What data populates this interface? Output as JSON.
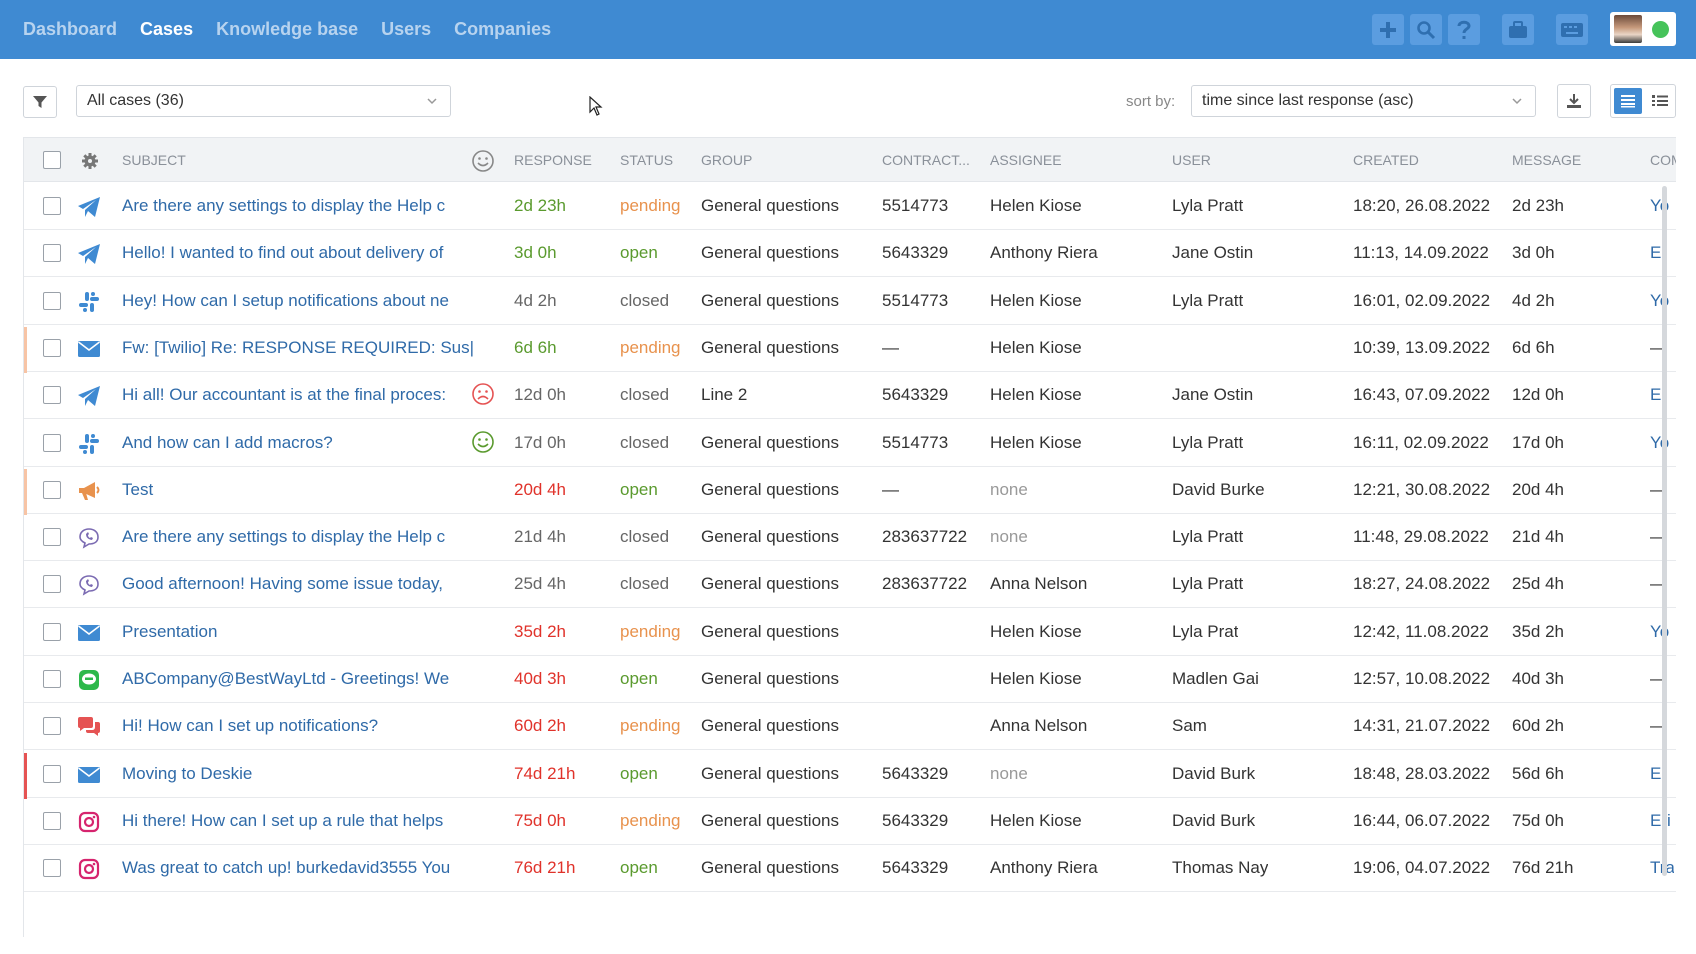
{
  "nav": {
    "items": [
      {
        "label": "Dashboard",
        "active": false
      },
      {
        "label": "Cases",
        "active": true
      },
      {
        "label": "Knowledge base",
        "active": false
      },
      {
        "label": "Users",
        "active": false
      },
      {
        "label": "Companies",
        "active": false
      }
    ]
  },
  "topbar_buttons": [
    "plus-icon",
    "search-icon",
    "help-icon",
    "briefcase-icon",
    "keyboard-icon"
  ],
  "toolbar": {
    "filter_value": "All cases (36)",
    "sort_label": "sort by:",
    "sort_value": "time since last response (asc)"
  },
  "table": {
    "columns": {
      "subject": "SUBJECT",
      "response": "RESPONSE",
      "status": "STATUS",
      "group": "GROUP",
      "contract": "CONTRACT...",
      "assignee": "ASSIGNEE",
      "user": "USER",
      "created": "CREATED",
      "message": "MESSAGE",
      "com": "COM"
    },
    "rows": [
      {
        "channel": "telegram",
        "flag": "",
        "subject": "Are there any settings to display the Help c",
        "mood": "",
        "response": "2d 23h",
        "response_color": "green",
        "status": "pending",
        "group": "General questions",
        "contract": "5514773",
        "assignee": "Helen Kiose",
        "user": "Lyla Pratt",
        "created": "18:20, 26.08.2022",
        "message": "2d 23h",
        "com": "Yo"
      },
      {
        "channel": "telegram",
        "flag": "",
        "subject": "Hello! I wanted to find out about delivery of",
        "mood": "",
        "response": "3d 0h",
        "response_color": "green",
        "status": "open",
        "group": "General questions",
        "contract": "5643329",
        "assignee": "Anthony Riera",
        "user": "Jane Ostin",
        "created": "11:13, 14.09.2022",
        "message": "3d 0h",
        "com": "Er"
      },
      {
        "channel": "slack",
        "flag": "",
        "subject": "Hey! How can I setup notifications about ne",
        "mood": "",
        "response": "4d 2h",
        "response_color": "gray",
        "status": "closed",
        "group": "General questions",
        "contract": "5514773",
        "assignee": "Helen Kiose",
        "user": "Lyla Pratt",
        "created": "16:01, 02.09.2022",
        "message": "4d 2h",
        "com": "Yo"
      },
      {
        "channel": "email",
        "flag": "#f7c4a5",
        "subject": "Fw: [Twilio] Re: RESPONSE REQUIRED: Sus|",
        "mood": "",
        "response": "6d 6h",
        "response_color": "green",
        "status": "pending",
        "group": "General questions",
        "contract": "—",
        "assignee": "Helen Kiose",
        "user": "",
        "created": "10:39, 13.09.2022",
        "message": "6d 6h",
        "com": "—"
      },
      {
        "channel": "telegram",
        "flag": "",
        "subject": "Hi all! Our accountant is at the final proces:",
        "mood": "sad",
        "response": "12d 0h",
        "response_color": "gray",
        "status": "closed",
        "group": "Line 2",
        "contract": "5643329",
        "assignee": "Helen Kiose",
        "user": "Jane Ostin",
        "created": "16:43, 07.09.2022",
        "message": "12d 0h",
        "com": "Er"
      },
      {
        "channel": "slack",
        "flag": "",
        "subject": "And how can I add macros?",
        "mood": "happy",
        "response": "17d 0h",
        "response_color": "gray",
        "status": "closed",
        "group": "General questions",
        "contract": "5514773",
        "assignee": "Helen Kiose",
        "user": "Lyla Pratt",
        "created": "16:11, 02.09.2022",
        "message": "17d 0h",
        "com": "Yo"
      },
      {
        "channel": "megaphone",
        "flag": "#f7c4a5",
        "subject": "Test",
        "mood": "",
        "response": "20d 4h",
        "response_color": "red",
        "status": "open",
        "group": "General questions",
        "contract": "—",
        "assignee": "none",
        "user": "David Burke",
        "created": "12:21, 30.08.2022",
        "message": "20d 4h",
        "com": "—"
      },
      {
        "channel": "viber",
        "flag": "",
        "subject": "Are there any settings to display the Help c",
        "mood": "",
        "response": "21d 4h",
        "response_color": "gray",
        "status": "closed",
        "group": "General questions",
        "contract": "283637722",
        "assignee": "none",
        "user": "Lyla Pratt",
        "created": "11:48, 29.08.2022",
        "message": "21d 4h",
        "com": "—"
      },
      {
        "channel": "viber",
        "flag": "",
        "subject": "Good afternoon! Having some issue today,",
        "mood": "",
        "response": "25d 4h",
        "response_color": "gray",
        "status": "closed",
        "group": "General questions",
        "contract": "283637722",
        "assignee": "Anna Nelson",
        "user": "Lyla Pratt",
        "created": "18:27, 24.08.2022",
        "message": "25d 4h",
        "com": "—"
      },
      {
        "channel": "email",
        "flag": "",
        "subject": "Presentation",
        "mood": "",
        "response": "35d 2h",
        "response_color": "red",
        "status": "pending",
        "group": "General questions",
        "contract": "",
        "assignee": "Helen Kiose",
        "user": "Lyla Prat",
        "created": "12:42, 11.08.2022",
        "message": "35d 2h",
        "com": "Yo"
      },
      {
        "channel": "line",
        "flag": "",
        "subject": "ABCompany@BestWayLtd - Greetings! We",
        "mood": "",
        "response": "40d 3h",
        "response_color": "red",
        "status": "open",
        "group": "General questions",
        "contract": "",
        "assignee": "Helen Kiose",
        "user": "Madlen Gai",
        "created": "12:57, 10.08.2022",
        "message": "40d 3h",
        "com": "—"
      },
      {
        "channel": "chat",
        "flag": "",
        "subject": "Hi! How can I set up notifications?",
        "mood": "",
        "response": "60d 2h",
        "response_color": "red",
        "status": "pending",
        "group": "General questions",
        "contract": "",
        "assignee": "Anna Nelson",
        "user": "Sam",
        "created": "14:31, 21.07.2022",
        "message": "60d 2h",
        "com": "—"
      },
      {
        "channel": "email",
        "flag": "#e55353",
        "subject": "Moving to Deskie",
        "mood": "",
        "response": "74d 21h",
        "response_color": "red",
        "status": "open",
        "group": "General questions",
        "contract": "5643329",
        "assignee": "none",
        "user": "David Burk",
        "created": "18:48, 28.03.2022",
        "message": "56d 6h",
        "com": "Er"
      },
      {
        "channel": "instagram",
        "flag": "",
        "subject": "Hi there! How can I set up a rule that helps",
        "mood": "",
        "response": "75d 0h",
        "response_color": "red",
        "status": "pending",
        "group": "General questions",
        "contract": "5643329",
        "assignee": "Helen Kiose",
        "user": "David Burk",
        "created": "16:44, 06.07.2022",
        "message": "75d 0h",
        "com": "Eri"
      },
      {
        "channel": "instagram",
        "flag": "",
        "subject": "Was great to catch up! burkedavid3555 You",
        "mood": "",
        "response": "76d 21h",
        "response_color": "red",
        "status": "open",
        "group": "General questions",
        "contract": "5643329",
        "assignee": "Anthony Riera",
        "user": "Thomas Nay",
        "created": "19:06, 04.07.2022",
        "message": "76d 21h",
        "com": "Tra"
      }
    ]
  },
  "colors": {
    "topbar": "#3f8ad2",
    "link": "#2f6aa8",
    "green": "#5a9a2e",
    "red": "#e0322a",
    "orange": "#e8924d"
  }
}
